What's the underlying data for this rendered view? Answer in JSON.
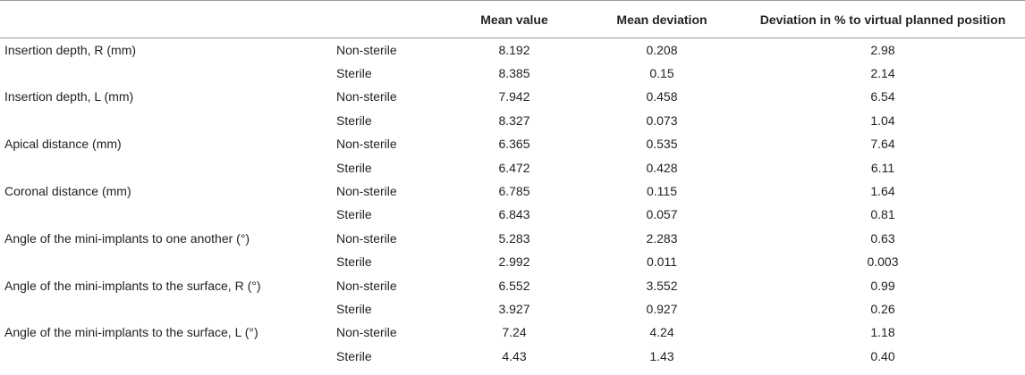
{
  "table": {
    "headers": {
      "parameter": "",
      "condition": "",
      "mean_value": "Mean value",
      "mean_deviation": "Mean deviation",
      "deviation_percent": "Deviation in % to virtual planned position"
    },
    "rows": [
      {
        "parameter": "Insertion depth, R (mm)",
        "condition": "Non-sterile",
        "mean_value": "8.192",
        "mean_deviation": "0.208",
        "deviation_percent": "2.98"
      },
      {
        "parameter": "",
        "condition": "Sterile",
        "mean_value": "8.385",
        "mean_deviation": "0.15",
        "deviation_percent": "2.14"
      },
      {
        "parameter": "Insertion depth, L (mm)",
        "condition": "Non-sterile",
        "mean_value": "7.942",
        "mean_deviation": "0.458",
        "deviation_percent": "6.54"
      },
      {
        "parameter": "",
        "condition": "Sterile",
        "mean_value": "8.327",
        "mean_deviation": "0.073",
        "deviation_percent": "1.04"
      },
      {
        "parameter": "Apical distance (mm)",
        "condition": "Non-sterile",
        "mean_value": "6.365",
        "mean_deviation": "0.535",
        "deviation_percent": "7.64"
      },
      {
        "parameter": "",
        "condition": "Sterile",
        "mean_value": "6.472",
        "mean_deviation": "0.428",
        "deviation_percent": "6.11"
      },
      {
        "parameter": "Coronal distance (mm)",
        "condition": "Non-sterile",
        "mean_value": "6.785",
        "mean_deviation": "0.115",
        "deviation_percent": "1.64"
      },
      {
        "parameter": "",
        "condition": "Sterile",
        "mean_value": "6.843",
        "mean_deviation": "0.057",
        "deviation_percent": "0.81"
      },
      {
        "parameter": "Angle of the mini-implants to one another (°)",
        "condition": "Non-sterile",
        "mean_value": "5.283",
        "mean_deviation": "2.283",
        "deviation_percent": "0.63"
      },
      {
        "parameter": "",
        "condition": "Sterile",
        "mean_value": "2.992",
        "mean_deviation": "0.011",
        "deviation_percent": "0.003"
      },
      {
        "parameter": "Angle of the mini-implants to the surface, R (°)",
        "condition": "Non-sterile",
        "mean_value": "6.552",
        "mean_deviation": "3.552",
        "deviation_percent": "0.99"
      },
      {
        "parameter": "",
        "condition": "Sterile",
        "mean_value": "3.927",
        "mean_deviation": "0.927",
        "deviation_percent": "0.26"
      },
      {
        "parameter": "Angle of the mini-implants to the surface, L (°)",
        "condition": "Non-sterile",
        "mean_value": "7.24",
        "mean_deviation": "4.24",
        "deviation_percent": "1.18"
      },
      {
        "parameter": "",
        "condition": "Sterile",
        "mean_value": "4.43",
        "mean_deviation": "1.43",
        "deviation_percent": "0.40"
      }
    ]
  }
}
